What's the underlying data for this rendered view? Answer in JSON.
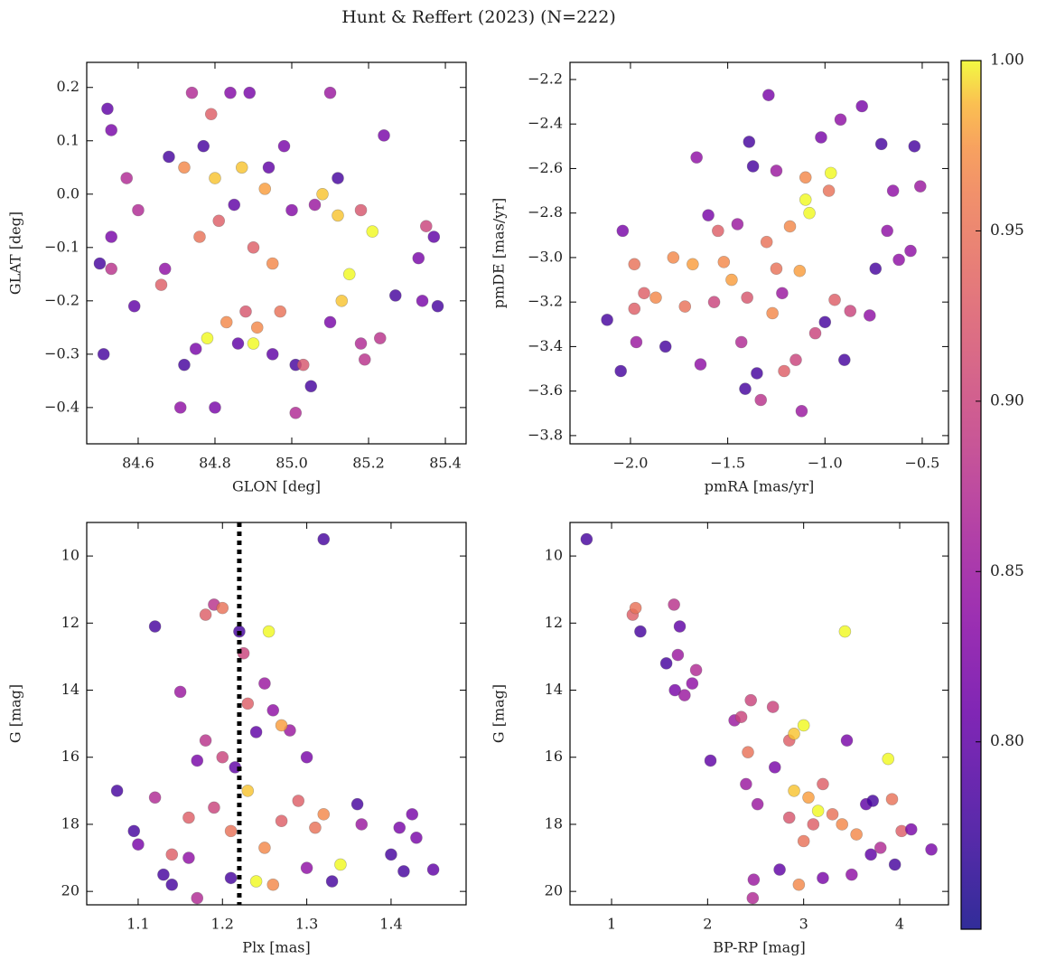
{
  "title": "Hunt & Reffert (2023) (N=222)",
  "colorbar": {
    "cmap": "plasma",
    "clim": [
      0.745,
      1.0
    ],
    "ticks": [
      {
        "value": 0.8,
        "label": "0.80"
      },
      0.85,
      {
        "value": 0.9,
        "label": "0.90"
      },
      0.95,
      {
        "value": 1.0,
        "label": "1.00"
      }
    ]
  },
  "chart_data": [
    {
      "type": "scatter",
      "xlabel": "GLON [deg]",
      "ylabel": "GLAT [deg]",
      "xlim": [
        84.466,
        85.454
      ],
      "ylim": [
        -0.468,
        0.247
      ],
      "xticks": [
        84.6,
        84.8,
        {
          "value": 85.0,
          "label": "85.0"
        },
        85.2,
        85.4
      ],
      "yticks": [
        {
          "value": -0.4,
          "label": "−0.4"
        },
        {
          "value": -0.3,
          "label": "−0.3"
        },
        {
          "value": -0.2,
          "label": "−0.2"
        },
        {
          "value": -0.1,
          "label": "−0.1"
        },
        {
          "value": 0.0,
          "label": "0.0"
        },
        0.1,
        0.2
      ],
      "x": [
        84.5,
        84.51,
        84.52,
        84.53,
        84.53,
        84.53,
        84.57,
        84.59,
        84.6,
        84.67,
        84.68,
        84.71,
        84.72,
        84.72,
        84.74,
        84.75,
        84.76,
        84.77,
        84.79,
        84.8,
        84.8,
        84.81,
        84.83,
        84.84,
        84.85,
        84.86,
        84.87,
        84.89,
        84.9,
        84.91,
        84.93,
        84.95,
        84.97,
        84.98,
        85.0,
        85.01,
        85.01,
        85.03,
        85.05,
        85.06,
        85.08,
        85.1,
        85.1,
        85.12,
        85.12,
        85.13,
        85.18,
        85.18,
        85.19,
        85.21,
        85.23,
        85.24,
        85.27,
        85.33,
        85.34,
        85.35,
        85.37,
        85.38,
        84.9,
        84.88,
        84.78,
        84.66,
        84.95,
        85.15,
        84.94
      ],
      "y": [
        -0.13,
        -0.3,
        0.16,
        0.12,
        -0.08,
        -0.14,
        0.03,
        -0.21,
        -0.03,
        -0.14,
        0.07,
        -0.4,
        0.05,
        -0.32,
        0.19,
        -0.29,
        -0.08,
        0.09,
        0.15,
        0.03,
        -0.4,
        -0.05,
        -0.24,
        0.19,
        -0.02,
        -0.28,
        0.05,
        0.19,
        -0.1,
        -0.25,
        0.01,
        -0.3,
        -0.22,
        0.09,
        -0.03,
        -0.32,
        -0.41,
        -0.32,
        -0.36,
        -0.02,
        0.0,
        0.19,
        -0.24,
        -0.04,
        0.03,
        -0.2,
        -0.03,
        -0.28,
        -0.31,
        -0.07,
        -0.27,
        0.11,
        -0.19,
        -0.12,
        -0.2,
        -0.06,
        -0.08,
        -0.21,
        -0.28,
        -0.22,
        -0.27,
        -0.17,
        -0.13,
        -0.15,
        0.05
      ],
      "c": [
        0.78,
        0.78,
        0.8,
        0.82,
        0.82,
        0.88,
        0.87,
        0.8,
        0.87,
        0.84,
        0.78,
        0.84,
        0.97,
        0.78,
        0.87,
        0.82,
        0.95,
        0.78,
        0.93,
        0.99,
        0.82,
        0.93,
        0.97,
        0.83,
        0.8,
        0.8,
        0.99,
        0.82,
        0.93,
        0.97,
        0.98,
        0.8,
        0.95,
        0.82,
        0.83,
        0.78,
        0.87,
        0.92,
        0.78,
        0.85,
        0.99,
        0.85,
        0.82,
        0.99,
        0.78,
        0.99,
        0.92,
        0.87,
        0.88,
        1.0,
        0.88,
        0.82,
        0.78,
        0.82,
        0.82,
        0.9,
        0.8,
        0.78,
        1.0,
        0.92,
        1.0,
        0.93,
        0.97,
        1.0,
        0.8
      ]
    },
    {
      "type": "scatter",
      "xlabel": "pmRA [mas/yr]",
      "ylabel": "pmDE [mas/yr]",
      "xlim": [
        -2.311,
        -0.365
      ],
      "ylim": [
        -3.837,
        -2.123
      ],
      "xticks": [
        {
          "value": -2.0,
          "label": "−2.0"
        },
        {
          "value": -1.5,
          "label": "−1.5"
        },
        {
          "value": -1.0,
          "label": "−1.0"
        },
        {
          "value": -0.5,
          "label": "−0.5"
        }
      ],
      "yticks": [
        {
          "value": -3.8,
          "label": "−3.8"
        },
        {
          "value": -3.6,
          "label": "−3.6"
        },
        {
          "value": -3.4,
          "label": "−3.4"
        },
        {
          "value": -3.2,
          "label": "−3.2"
        },
        {
          "value": -3.0,
          "label": "−3.0"
        },
        {
          "value": -2.8,
          "label": "−2.8"
        },
        {
          "value": -2.6,
          "label": "−2.6"
        },
        {
          "value": -2.4,
          "label": "−2.4"
        },
        {
          "value": -2.2,
          "label": "−2.2"
        }
      ],
      "x": [
        -2.12,
        -2.05,
        -2.04,
        -1.98,
        -1.98,
        -1.97,
        -1.93,
        -1.87,
        -1.82,
        -1.78,
        -1.72,
        -1.68,
        -1.66,
        -1.64,
        -1.6,
        -1.57,
        -1.55,
        -1.52,
        -1.48,
        -1.45,
        -1.43,
        -1.41,
        -1.39,
        -1.37,
        -1.35,
        -1.33,
        -1.3,
        -1.29,
        -1.27,
        -1.25,
        -1.22,
        -1.21,
        -1.18,
        -1.15,
        -1.13,
        -1.12,
        -1.1,
        -1.08,
        -1.05,
        -1.02,
        -1.0,
        -0.97,
        -0.95,
        -0.92,
        -0.9,
        -0.87,
        -0.81,
        -0.77,
        -0.74,
        -0.71,
        -0.68,
        -0.65,
        -0.62,
        -0.56,
        -0.54,
        -0.51,
        -1.25,
        -1.4,
        -1.1,
        -0.98
      ],
      "y": [
        -3.28,
        -3.51,
        -2.88,
        -3.03,
        -3.23,
        -3.38,
        -3.16,
        -3.18,
        -3.4,
        -3.0,
        -3.22,
        -3.03,
        -2.55,
        -3.48,
        -2.81,
        -3.2,
        -2.88,
        -3.02,
        -3.1,
        -2.85,
        -3.38,
        -3.59,
        -2.48,
        -2.59,
        -3.52,
        -3.64,
        -2.93,
        -2.27,
        -3.25,
        -2.61,
        -3.16,
        -3.51,
        -2.86,
        -3.46,
        -3.06,
        -3.69,
        -2.64,
        -2.8,
        -3.34,
        -2.46,
        -3.29,
        -2.62,
        -3.19,
        -2.38,
        -3.46,
        -3.24,
        -2.32,
        -3.26,
        -3.05,
        -2.49,
        -2.88,
        -2.7,
        -3.01,
        -2.97,
        -2.5,
        -2.68,
        -3.05,
        -3.18,
        -2.74,
        -2.7
      ],
      "c": [
        0.78,
        0.78,
        0.82,
        0.95,
        0.93,
        0.85,
        0.93,
        0.97,
        0.78,
        0.97,
        0.95,
        0.98,
        0.84,
        0.84,
        0.82,
        0.9,
        0.93,
        0.97,
        0.98,
        0.85,
        0.87,
        0.78,
        0.78,
        0.78,
        0.78,
        0.88,
        0.95,
        0.82,
        0.97,
        0.85,
        0.85,
        0.93,
        0.97,
        0.9,
        0.98,
        0.85,
        0.97,
        1.0,
        0.9,
        0.82,
        0.78,
        1.0,
        0.93,
        0.84,
        0.78,
        0.9,
        0.82,
        0.84,
        0.78,
        0.78,
        0.84,
        0.84,
        0.84,
        0.84,
        0.78,
        0.85,
        0.95,
        0.92,
        1.0,
        0.95
      ]
    },
    {
      "type": "scatter",
      "xlabel": "Plx [mas]",
      "ylabel": "G [mag]",
      "xlim": [
        1.039,
        1.489
      ],
      "ylim": [
        20.4,
        9.0
      ],
      "vline": 1.22,
      "xticks": [
        1.1,
        1.2,
        1.3,
        1.4
      ],
      "yticks": [
        10,
        12,
        14,
        16,
        18,
        20
      ],
      "x": [
        1.075,
        1.095,
        1.1,
        1.12,
        1.13,
        1.15,
        1.16,
        1.17,
        1.18,
        1.19,
        1.2,
        1.22,
        1.215,
        1.225,
        1.23,
        1.24,
        1.25,
        1.255,
        1.26,
        1.28,
        1.27,
        1.29,
        1.3,
        1.3,
        1.32,
        1.32,
        1.33,
        1.34,
        1.36,
        1.365,
        1.4,
        1.41,
        1.415,
        1.425,
        1.43,
        1.45,
        1.14,
        1.17,
        1.19,
        1.21,
        1.23,
        1.25,
        1.27,
        1.31,
        1.12,
        1.16,
        1.26,
        1.24,
        1.21,
        1.18,
        1.14,
        1.2
      ],
      "y": [
        17.0,
        18.2,
        18.6,
        12.1,
        19.5,
        14.05,
        17.8,
        20.2,
        11.75,
        11.45,
        11.55,
        12.25,
        16.3,
        12.9,
        14.4,
        15.25,
        13.8,
        12.25,
        14.6,
        15.2,
        15.05,
        17.3,
        16.0,
        19.3,
        9.5,
        17.7,
        19.7,
        19.2,
        17.4,
        18.0,
        18.9,
        18.1,
        19.4,
        17.7,
        18.4,
        19.35,
        18.9,
        16.1,
        17.5,
        18.2,
        17.0,
        18.7,
        17.9,
        18.1,
        17.2,
        19.0,
        19.8,
        19.7,
        19.6,
        15.5,
        19.8,
        16.0
      ],
      "c": [
        0.78,
        0.78,
        0.82,
        0.78,
        0.78,
        0.85,
        0.93,
        0.87,
        0.93,
        0.88,
        0.95,
        0.78,
        0.8,
        0.9,
        0.93,
        0.8,
        0.85,
        1.0,
        0.84,
        0.85,
        0.98,
        0.93,
        0.82,
        0.84,
        0.78,
        0.97,
        0.78,
        1.0,
        0.78,
        0.85,
        0.78,
        0.82,
        0.78,
        0.82,
        0.82,
        0.8,
        0.93,
        0.82,
        0.9,
        0.95,
        0.99,
        0.97,
        0.93,
        0.95,
        0.87,
        0.84,
        0.97,
        1.0,
        0.78,
        0.88,
        0.78,
        0.9
      ]
    },
    {
      "type": "scatter",
      "xlabel": "BP-RP [mag]",
      "ylabel": "G [mag]",
      "xlim": [
        0.567,
        4.508
      ],
      "ylim": [
        20.4,
        9.0
      ],
      "xticks": [
        1,
        2,
        3,
        4
      ],
      "yticks": [
        10,
        12,
        14,
        16,
        18,
        20
      ],
      "x": [
        0.74,
        1.22,
        1.25,
        1.3,
        1.57,
        1.65,
        1.66,
        1.69,
        1.71,
        1.76,
        1.84,
        1.88,
        2.03,
        2.28,
        2.35,
        2.42,
        2.45,
        2.48,
        2.47,
        2.52,
        2.68,
        2.75,
        2.85,
        2.9,
        2.95,
        3.0,
        3.05,
        3.1,
        3.2,
        3.3,
        3.43,
        3.45,
        3.55,
        3.65,
        3.7,
        3.72,
        3.88,
        3.92,
        3.95,
        4.02,
        4.12,
        4.33,
        2.9,
        3.2,
        3.0,
        3.4,
        2.7,
        3.8,
        3.5,
        2.4,
        3.15,
        2.85
      ],
      "y": [
        9.5,
        11.75,
        11.55,
        12.25,
        13.2,
        11.45,
        14.0,
        12.95,
        12.1,
        14.15,
        13.8,
        13.4,
        16.1,
        14.9,
        14.8,
        15.85,
        14.3,
        19.65,
        20.2,
        17.4,
        14.5,
        19.35,
        15.5,
        15.3,
        19.8,
        15.05,
        17.2,
        18.0,
        19.6,
        17.7,
        12.25,
        15.5,
        18.3,
        17.4,
        18.9,
        17.3,
        16.05,
        17.25,
        19.2,
        18.2,
        18.15,
        18.75,
        17.0,
        16.8,
        18.5,
        18.0,
        16.3,
        18.7,
        19.5,
        16.8,
        17.6,
        17.8
      ],
      "c": [
        0.78,
        0.93,
        0.95,
        0.78,
        0.78,
        0.88,
        0.82,
        0.85,
        0.8,
        0.85,
        0.84,
        0.87,
        0.8,
        0.85,
        0.9,
        0.95,
        0.9,
        0.85,
        0.87,
        0.85,
        0.9,
        0.8,
        0.93,
        0.99,
        0.97,
        1.0,
        0.98,
        0.93,
        0.82,
        0.95,
        1.0,
        0.82,
        0.97,
        0.8,
        0.8,
        0.78,
        1.0,
        0.95,
        0.78,
        0.93,
        0.82,
        0.82,
        0.99,
        0.93,
        0.95,
        0.97,
        0.82,
        0.87,
        0.84,
        0.85,
        1.0,
        0.92
      ]
    }
  ]
}
